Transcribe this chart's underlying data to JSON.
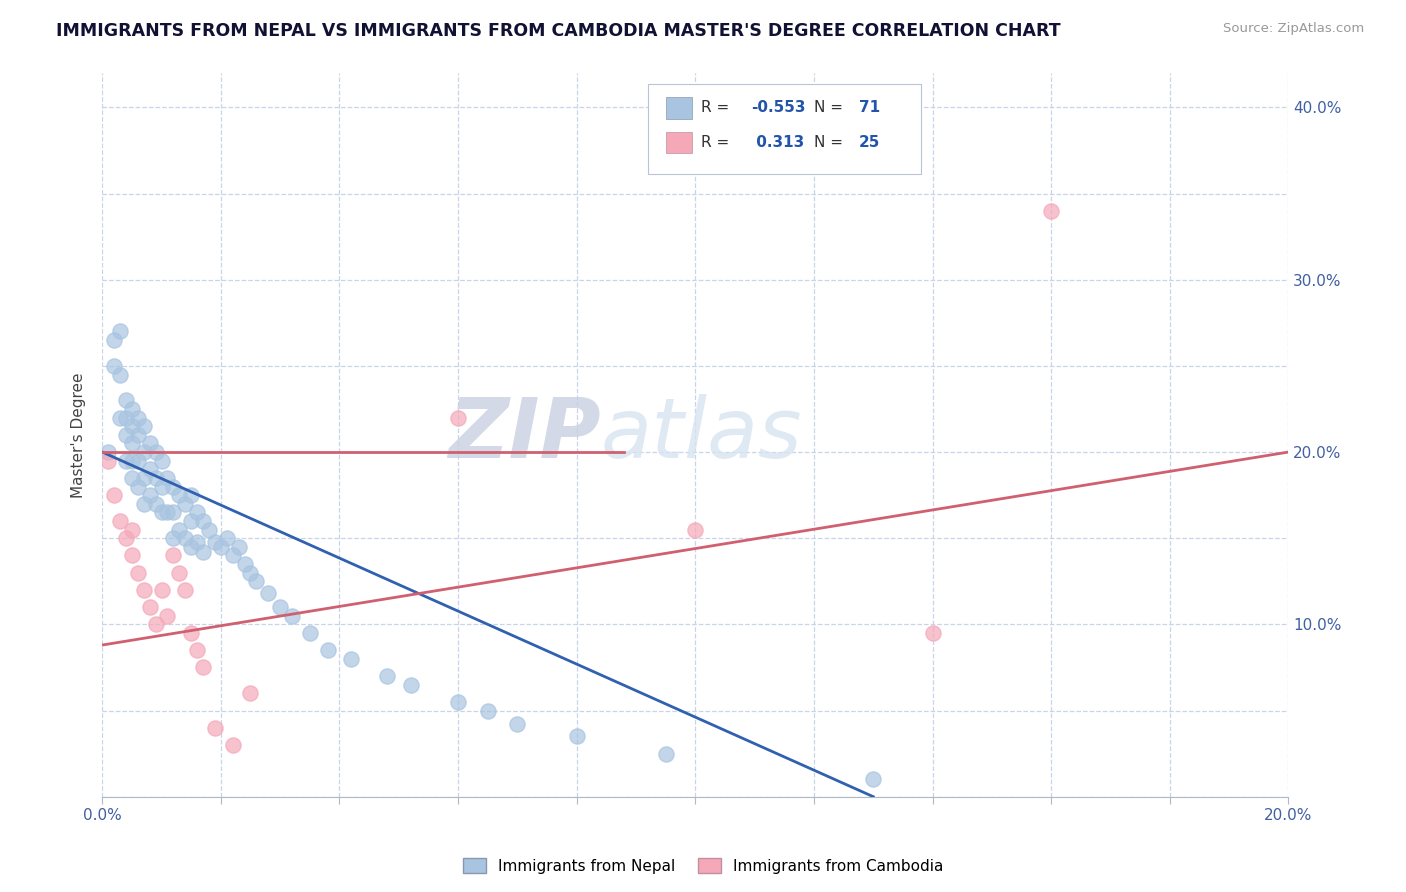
{
  "title": "IMMIGRANTS FROM NEPAL VS IMMIGRANTS FROM CAMBODIA MASTER'S DEGREE CORRELATION CHART",
  "source": "Source: ZipAtlas.com",
  "ylabel": "Master's Degree",
  "xlim": [
    0.0,
    0.2
  ],
  "ylim": [
    0.0,
    0.42
  ],
  "xticks": [
    0.0,
    0.02,
    0.04,
    0.06,
    0.08,
    0.1,
    0.12,
    0.14,
    0.16,
    0.18,
    0.2
  ],
  "yticks": [
    0.0,
    0.05,
    0.1,
    0.15,
    0.2,
    0.25,
    0.3,
    0.35,
    0.4
  ],
  "ytick_labels": [
    "",
    "",
    "10.0%",
    "",
    "20.0%",
    "",
    "30.0%",
    "",
    "40.0%"
  ],
  "xtick_labels": [
    "0.0%",
    "",
    "",
    "",
    "",
    "",
    "",
    "",
    "",
    "",
    "20.0%"
  ],
  "nepal_R": -0.553,
  "nepal_N": 71,
  "cambodia_R": 0.313,
  "cambodia_N": 25,
  "nepal_color": "#a8c4e0",
  "cambodia_color": "#f4a8b8",
  "nepal_line_color": "#3060b0",
  "cambodia_line_color": "#d06070",
  "watermark_text": "ZIPatlas",
  "watermark_color": "#d8e0f0",
  "background_color": "#ffffff",
  "grid_color": "#c8d4e8",
  "nepal_x": [
    0.001,
    0.002,
    0.002,
    0.003,
    0.003,
    0.003,
    0.004,
    0.004,
    0.004,
    0.004,
    0.005,
    0.005,
    0.005,
    0.005,
    0.005,
    0.006,
    0.006,
    0.006,
    0.006,
    0.007,
    0.007,
    0.007,
    0.007,
    0.008,
    0.008,
    0.008,
    0.009,
    0.009,
    0.009,
    0.01,
    0.01,
    0.01,
    0.011,
    0.011,
    0.012,
    0.012,
    0.012,
    0.013,
    0.013,
    0.014,
    0.014,
    0.015,
    0.015,
    0.015,
    0.016,
    0.016,
    0.017,
    0.017,
    0.018,
    0.019,
    0.02,
    0.021,
    0.022,
    0.023,
    0.024,
    0.025,
    0.026,
    0.028,
    0.03,
    0.032,
    0.035,
    0.038,
    0.042,
    0.048,
    0.052,
    0.06,
    0.065,
    0.07,
    0.08,
    0.095,
    0.13
  ],
  "nepal_y": [
    0.2,
    0.265,
    0.25,
    0.27,
    0.245,
    0.22,
    0.23,
    0.22,
    0.21,
    0.195,
    0.225,
    0.215,
    0.205,
    0.195,
    0.185,
    0.22,
    0.21,
    0.195,
    0.18,
    0.215,
    0.2,
    0.185,
    0.17,
    0.205,
    0.19,
    0.175,
    0.2,
    0.185,
    0.17,
    0.195,
    0.18,
    0.165,
    0.185,
    0.165,
    0.18,
    0.165,
    0.15,
    0.175,
    0.155,
    0.17,
    0.15,
    0.175,
    0.16,
    0.145,
    0.165,
    0.148,
    0.16,
    0.142,
    0.155,
    0.148,
    0.145,
    0.15,
    0.14,
    0.145,
    0.135,
    0.13,
    0.125,
    0.118,
    0.11,
    0.105,
    0.095,
    0.085,
    0.08,
    0.07,
    0.065,
    0.055,
    0.05,
    0.042,
    0.035,
    0.025,
    0.01
  ],
  "cambodia_x": [
    0.001,
    0.002,
    0.003,
    0.004,
    0.005,
    0.005,
    0.006,
    0.007,
    0.008,
    0.009,
    0.01,
    0.011,
    0.012,
    0.013,
    0.014,
    0.015,
    0.016,
    0.017,
    0.019,
    0.022,
    0.025,
    0.06,
    0.1,
    0.14,
    0.16
  ],
  "cambodia_y": [
    0.195,
    0.175,
    0.16,
    0.15,
    0.155,
    0.14,
    0.13,
    0.12,
    0.11,
    0.1,
    0.12,
    0.105,
    0.14,
    0.13,
    0.12,
    0.095,
    0.085,
    0.075,
    0.04,
    0.03,
    0.06,
    0.22,
    0.155,
    0.095,
    0.34
  ],
  "legend_labels": [
    "Immigrants from Nepal",
    "Immigrants from Cambodia"
  ]
}
